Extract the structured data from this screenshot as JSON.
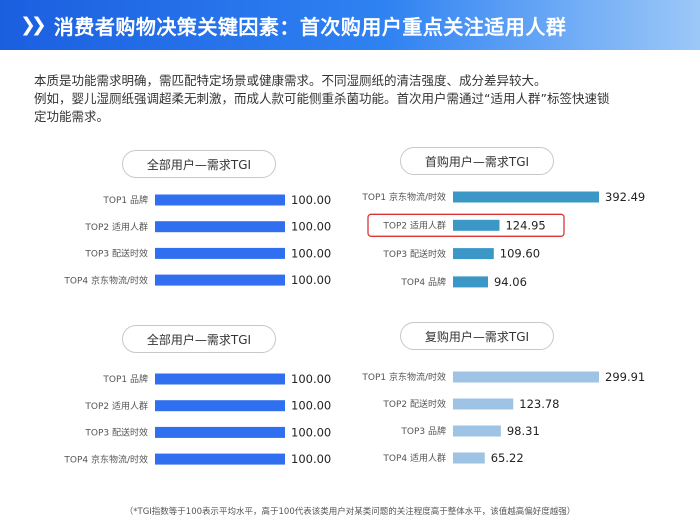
{
  "header": {
    "title": "消费者购物决策关键因素：首次购用户重点关注适用人群"
  },
  "intro": {
    "line1": "本质是功能需求明确，需匹配特定场景或健康需求。不同湿厕纸的清洁强度、成分差异较大。",
    "line2": "例如，婴儿湿厕纸强调超柔无刺激，而成人款可能侧重杀菌功能。首次用户需通过“适用人群”标签快速锁",
    "line3": "定功能需求。"
  },
  "colors": {
    "header_start": "#1b5fe0",
    "header_end": "#9cc8f8",
    "bar_all_users": "#2f6ff0",
    "bar_first_purchase": "#3a97c6",
    "bar_repurchase": "#9ec3e4",
    "highlight_box": "#d93535"
  },
  "footnote": "（*TGI指数等于100表示平均水平，高于100代表该类用户对某类问题的关注程度高于整体水平，该值越高偏好度越强）",
  "chart_data": [
    {
      "type": "bar",
      "orientation": "horizontal",
      "title": "全部用户—需求TGI",
      "categories": [
        "TOP1 品牌",
        "TOP2 适用人群",
        "TOP3 配送时效",
        "TOP4 京东物流/时效"
      ],
      "values": [
        100.0,
        100.0,
        100.0,
        100.0
      ],
      "value_labels": [
        "100.00",
        "100.00",
        "100.00",
        "100.00"
      ],
      "xlim": [
        0,
        100
      ]
    },
    {
      "type": "bar",
      "orientation": "horizontal",
      "title": "首购用户—需求TGI",
      "categories": [
        "TOP1 京东物流/时效",
        "TOP2 适用人群",
        "TOP3 配送时效",
        "TOP4 品牌"
      ],
      "values": [
        392.49,
        124.95,
        109.6,
        94.06
      ],
      "value_labels": [
        "392.49",
        "124.95",
        "109.60",
        "94.06"
      ],
      "highlighted": "TOP2 适用人群",
      "xlim": [
        0,
        392.49
      ]
    },
    {
      "type": "bar",
      "orientation": "horizontal",
      "title": "全部用户—需求TGI",
      "categories": [
        "TOP1 品牌",
        "TOP2 适用人群",
        "TOP3 配送时效",
        "TOP4 京东物流/时效"
      ],
      "values": [
        100.0,
        100.0,
        100.0,
        100.0
      ],
      "value_labels": [
        "100.00",
        "100.00",
        "100.00",
        "100.00"
      ],
      "xlim": [
        0,
        100
      ]
    },
    {
      "type": "bar",
      "orientation": "horizontal",
      "title": "复购用户—需求TGI",
      "categories": [
        "TOP1 京东物流/时效",
        "TOP2 配送时效",
        "TOP3 品牌",
        "TOP4 适用人群"
      ],
      "values": [
        299.91,
        123.78,
        98.31,
        65.22
      ],
      "value_labels": [
        "299.91",
        "123.78",
        "98.31",
        "65.22"
      ],
      "xlim": [
        0,
        299.91
      ]
    }
  ]
}
